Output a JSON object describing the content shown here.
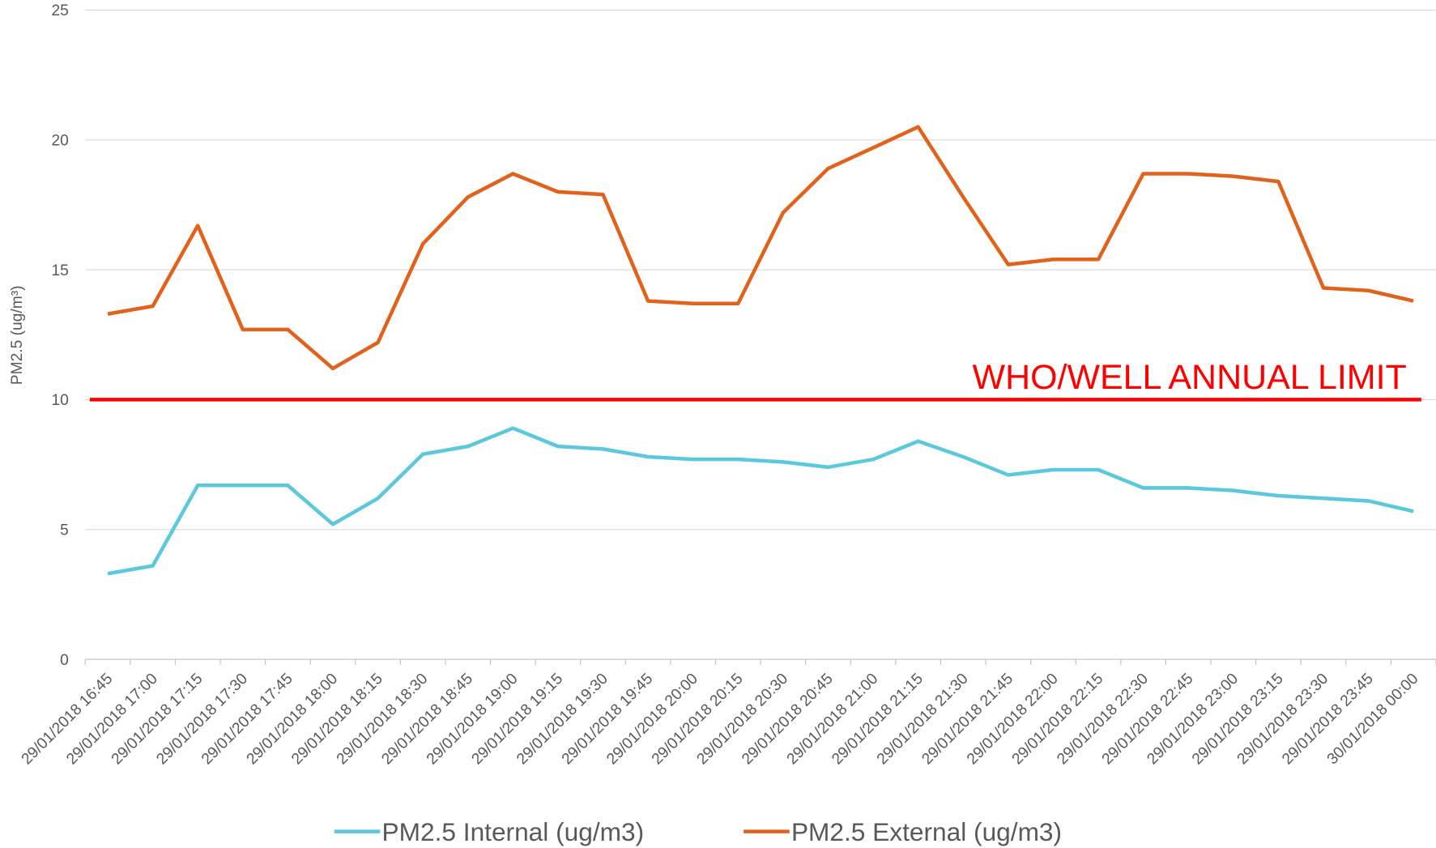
{
  "chart_data": {
    "type": "line",
    "ylabel": "PM2.5 (ug/m³)",
    "categories": [
      "29/01/2018 16:45",
      "29/01/2018 17:00",
      "29/01/2018 17:15",
      "29/01/2018 17:30",
      "29/01/2018 17:45",
      "29/01/2018 18:00",
      "29/01/2018 18:15",
      "29/01/2018 18:30",
      "29/01/2018 18:45",
      "29/01/2018 19:00",
      "29/01/2018 19:15",
      "29/01/2018 19:30",
      "29/01/2018 19:45",
      "29/01/2018 20:00",
      "29/01/2018 20:15",
      "29/01/2018 20:30",
      "29/01/2018 20:45",
      "29/01/2018 21:00",
      "29/01/2018 21:15",
      "29/01/2018 21:30",
      "29/01/2018 21:45",
      "29/01/2018 22:00",
      "29/01/2018 22:15",
      "29/01/2018 22:30",
      "29/01/2018 22:45",
      "29/01/2018 23:00",
      "29/01/2018 23:15",
      "29/01/2018 23:30",
      "29/01/2018 23:45",
      "30/01/2018 00:00"
    ],
    "series": [
      {
        "name": "PM2.5 Internal (ug/m3)",
        "color": "#5bc8dc",
        "values": [
          3.3,
          3.6,
          6.7,
          6.7,
          6.7,
          5.2,
          6.2,
          7.9,
          8.2,
          8.9,
          8.2,
          8.1,
          7.8,
          7.7,
          7.7,
          7.6,
          7.4,
          7.7,
          8.4,
          7.8,
          7.1,
          7.3,
          7.3,
          6.6,
          6.6,
          6.5,
          6.3,
          6.2,
          6.1,
          5.7
        ]
      },
      {
        "name": "PM2.5 External (ug/m3)",
        "color": "#e0621b",
        "values": [
          13.3,
          13.6,
          16.7,
          12.7,
          12.7,
          11.2,
          12.2,
          16.0,
          17.8,
          18.7,
          18.0,
          17.9,
          13.8,
          13.7,
          13.7,
          17.2,
          18.9,
          19.7,
          20.5,
          17.8,
          15.2,
          15.4,
          15.4,
          18.7,
          18.7,
          18.6,
          18.4,
          14.3,
          14.2,
          13.8
        ]
      }
    ],
    "annotation": {
      "text": "WHO/WELL ANNUAL LIMIT",
      "value": 10,
      "color": "#ff0000"
    },
    "ylim": [
      0,
      25
    ],
    "yticks": [
      0,
      5,
      10,
      15,
      20,
      25
    ],
    "grid": true,
    "legend": "bottom"
  }
}
